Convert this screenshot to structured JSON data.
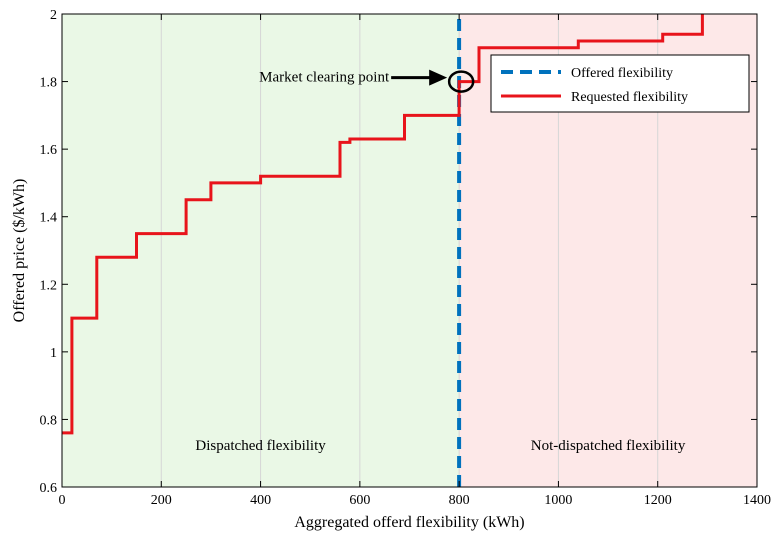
{
  "chart_data": {
    "type": "line",
    "xlabel": "Aggregated offerd flexibility (kWh)",
    "ylabel": "Offered price ($/kWh)",
    "xlim": [
      0,
      1400
    ],
    "ylim": [
      0.6,
      2.0
    ],
    "xticks": [
      0,
      200,
      400,
      600,
      800,
      1000,
      1200,
      1400
    ],
    "yticks": [
      0.6,
      0.8,
      1.0,
      1.2,
      1.4,
      1.6,
      1.8,
      2.0
    ],
    "xtick_labels": [
      "0",
      "200",
      "400",
      "600",
      "800",
      "1000",
      "1200",
      "1400"
    ],
    "ytick_labels": [
      "0.6",
      "0.8",
      "1",
      "1.2",
      "1.4",
      "1.6",
      "1.8",
      "2"
    ],
    "grid": "vertical",
    "legend_position": "top-right",
    "regions": [
      {
        "label": "Dispatched flexibility",
        "x_range": [
          0,
          800
        ],
        "color": "#eaf8e6"
      },
      {
        "label": "Not-dispatched flexibility",
        "x_range": [
          800,
          1400
        ],
        "color": "#fde8e8"
      }
    ],
    "series": [
      {
        "name": "Offered flexibility",
        "style": "dashed",
        "color": "#0072bd",
        "x": [
          800,
          800
        ],
        "y": [
          0.6,
          2.0
        ]
      },
      {
        "name": "Requested flexibility",
        "style": "step",
        "color": "#e8141b",
        "x": [
          0,
          20,
          20,
          70,
          70,
          150,
          150,
          250,
          250,
          300,
          300,
          400,
          400,
          560,
          560,
          580,
          580,
          690,
          690,
          800,
          800,
          840,
          840,
          1040,
          1040,
          1210,
          1210,
          1290,
          1290
        ],
        "y": [
          0.76,
          0.76,
          1.1,
          1.1,
          1.28,
          1.28,
          1.35,
          1.35,
          1.45,
          1.45,
          1.5,
          1.5,
          1.52,
          1.52,
          1.62,
          1.62,
          1.63,
          1.63,
          1.7,
          1.7,
          1.8,
          1.8,
          1.9,
          1.9,
          1.92,
          1.92,
          1.94,
          1.94,
          2.0
        ]
      }
    ],
    "annotations": [
      {
        "text": "Market clearing point",
        "x": 800,
        "y": 1.8
      }
    ]
  }
}
